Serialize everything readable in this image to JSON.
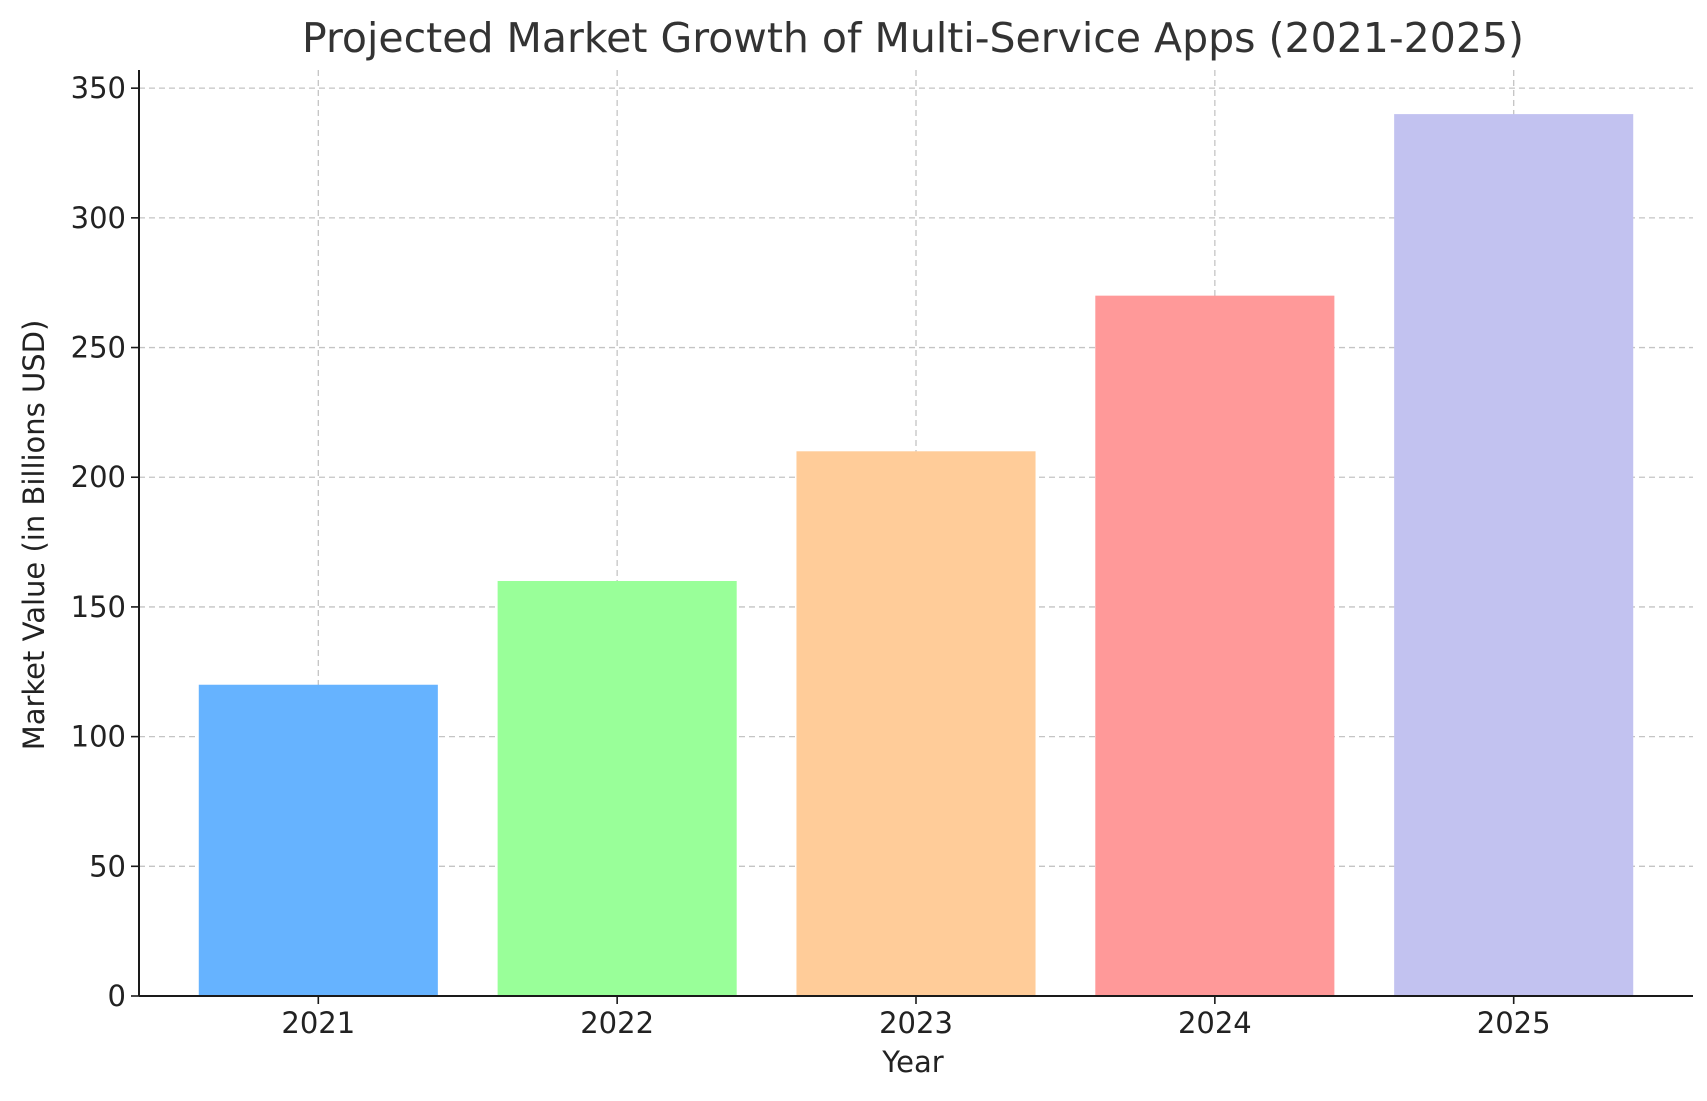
{
  "chart_data": {
    "type": "bar",
    "title": "Projected Market Growth of Multi-Service Apps (2021-2025)",
    "xlabel": "Year",
    "ylabel": "Market Value (in Billions USD)",
    "categories": [
      "2021",
      "2022",
      "2023",
      "2024",
      "2025"
    ],
    "values": [
      120,
      160,
      210,
      270,
      340
    ],
    "colors": [
      "#66b3ff",
      "#99ff99",
      "#ffcc99",
      "#ff9999",
      "#c2c2f0"
    ],
    "ylim": [
      0,
      357
    ],
    "yticks": [
      0,
      50,
      100,
      150,
      200,
      250,
      300,
      350
    ],
    "grid": true,
    "legend": "none"
  }
}
